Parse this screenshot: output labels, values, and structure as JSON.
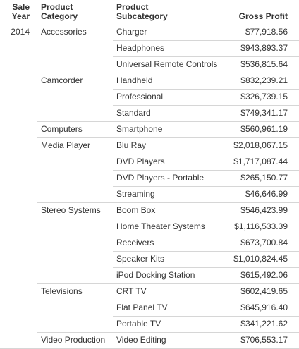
{
  "headers": {
    "year": [
      "Sale",
      "Year"
    ],
    "category": [
      "Product",
      "Category"
    ],
    "subcategory": [
      "Product",
      "Subcategory"
    ],
    "gross_profit": "Gross Profit"
  },
  "year": "2014",
  "groups": [
    {
      "category": "Accessories",
      "rows": [
        {
          "subcategory": "Charger",
          "gross_profit": "$77,918.56"
        },
        {
          "subcategory": "Headphones",
          "gross_profit": "$943,893.37"
        },
        {
          "subcategory": "Universal Remote Controls",
          "gross_profit": "$536,815.64"
        }
      ]
    },
    {
      "category": "Camcorder",
      "rows": [
        {
          "subcategory": "Handheld",
          "gross_profit": "$832,239.21"
        },
        {
          "subcategory": "Professional",
          "gross_profit": "$326,739.15"
        },
        {
          "subcategory": "Standard",
          "gross_profit": "$749,341.17"
        }
      ]
    },
    {
      "category": "Computers",
      "rows": [
        {
          "subcategory": "Smartphone",
          "gross_profit": "$560,961.19"
        }
      ]
    },
    {
      "category": "Media Player",
      "rows": [
        {
          "subcategory": "Blu Ray",
          "gross_profit": "$2,018,067.15"
        },
        {
          "subcategory": "DVD Players",
          "gross_profit": "$1,717,087.44"
        },
        {
          "subcategory": "DVD Players - Portable",
          "gross_profit": "$265,150.77"
        },
        {
          "subcategory": "Streaming",
          "gross_profit": "$46,646.99"
        }
      ]
    },
    {
      "category": "Stereo Systems",
      "rows": [
        {
          "subcategory": "Boom Box",
          "gross_profit": "$546,423.99"
        },
        {
          "subcategory": "Home Theater Systems",
          "gross_profit": "$1,116,533.39"
        },
        {
          "subcategory": "Receivers",
          "gross_profit": "$673,700.84"
        },
        {
          "subcategory": "Speaker Kits",
          "gross_profit": "$1,010,824.45"
        },
        {
          "subcategory": "iPod Docking Station",
          "gross_profit": "$615,492.06"
        }
      ]
    },
    {
      "category": "Televisions",
      "rows": [
        {
          "subcategory": "CRT TV",
          "gross_profit": "$602,419.65"
        },
        {
          "subcategory": "Flat Panel TV",
          "gross_profit": "$645,916.40"
        },
        {
          "subcategory": "Portable TV",
          "gross_profit": "$341,221.62"
        }
      ]
    },
    {
      "category": "Video Production",
      "rows": [
        {
          "subcategory": "Video Editing",
          "gross_profit": "$706,553.17"
        }
      ]
    }
  ]
}
